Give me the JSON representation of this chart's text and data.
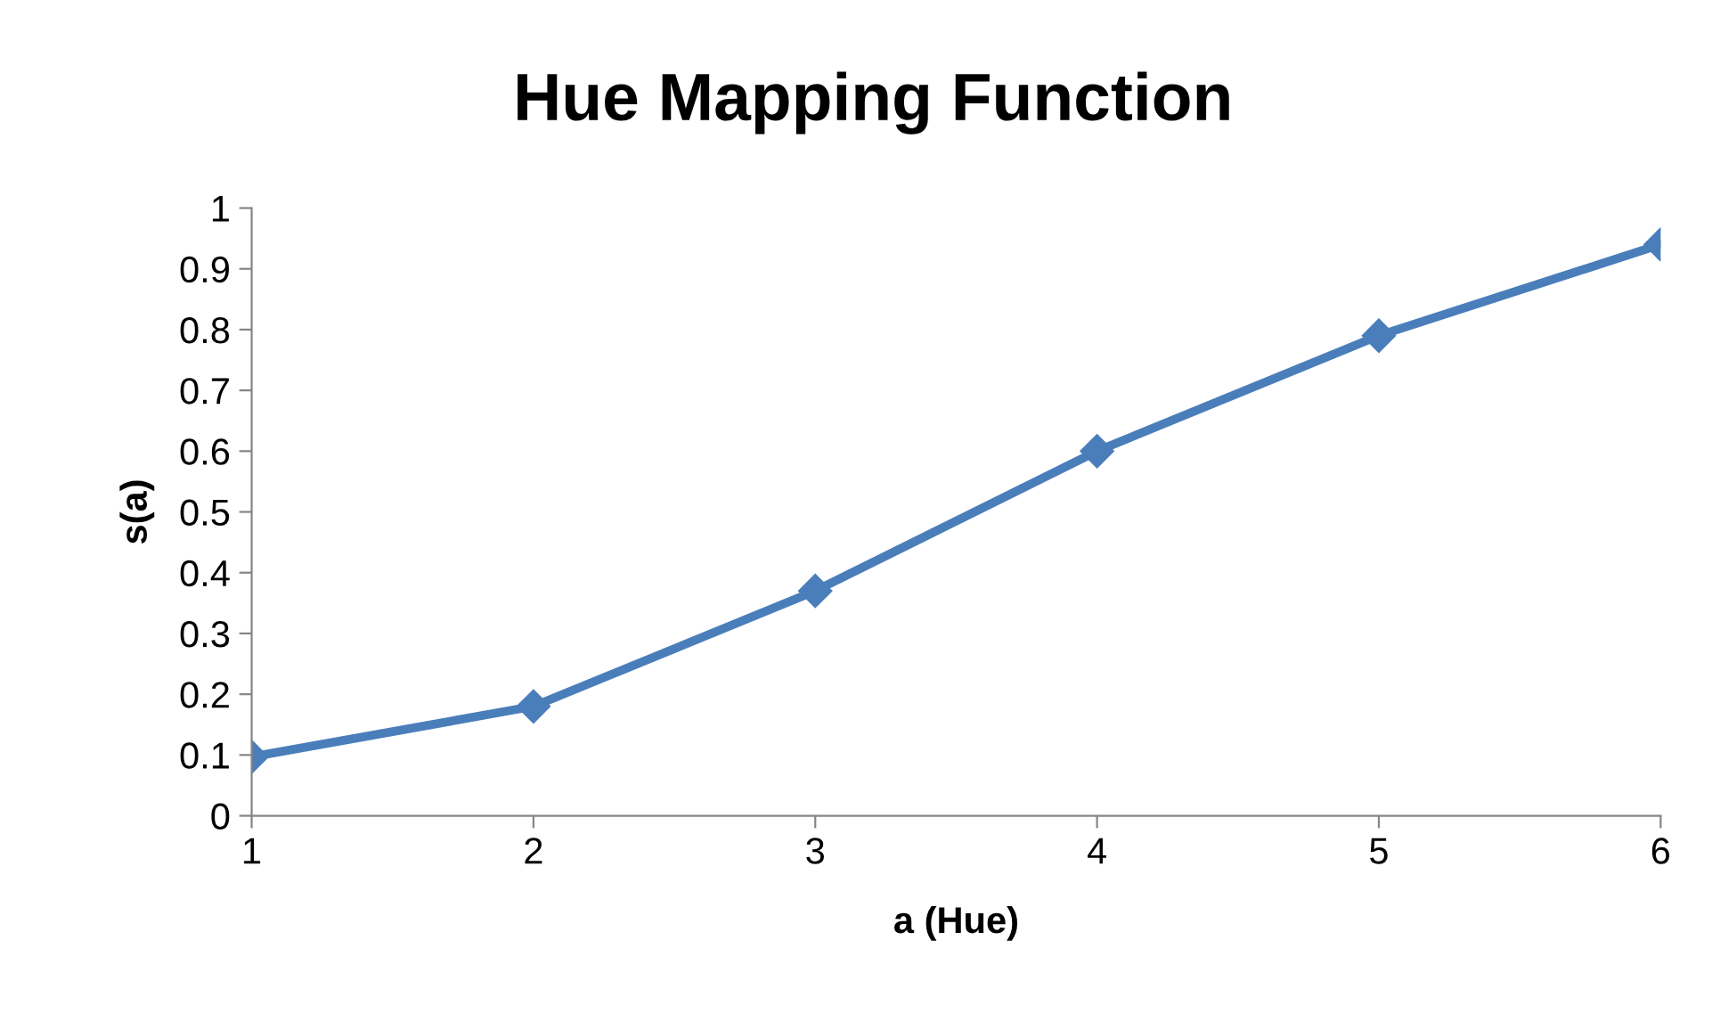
{
  "chart_data": {
    "type": "line",
    "title": "Hue Mapping Function",
    "xlabel": "a (Hue)",
    "ylabel": "s(a)",
    "x": [
      1,
      2,
      3,
      4,
      5,
      6
    ],
    "series": [
      {
        "color": "#4a7ebb",
        "values": [
          0.097,
          0.18,
          0.37,
          0.6,
          0.79,
          0.94
        ]
      }
    ],
    "xlim": [
      1,
      6
    ],
    "xticks": [
      1,
      2,
      3,
      4,
      5,
      6
    ],
    "ylim": [
      0,
      1
    ],
    "yticks": [
      0,
      0.1,
      0.2,
      0.3,
      0.4,
      0.5,
      0.6,
      0.7,
      0.8,
      0.9,
      1
    ],
    "grid": false,
    "legend": false,
    "marker": "diamond",
    "line_style": "solid"
  }
}
